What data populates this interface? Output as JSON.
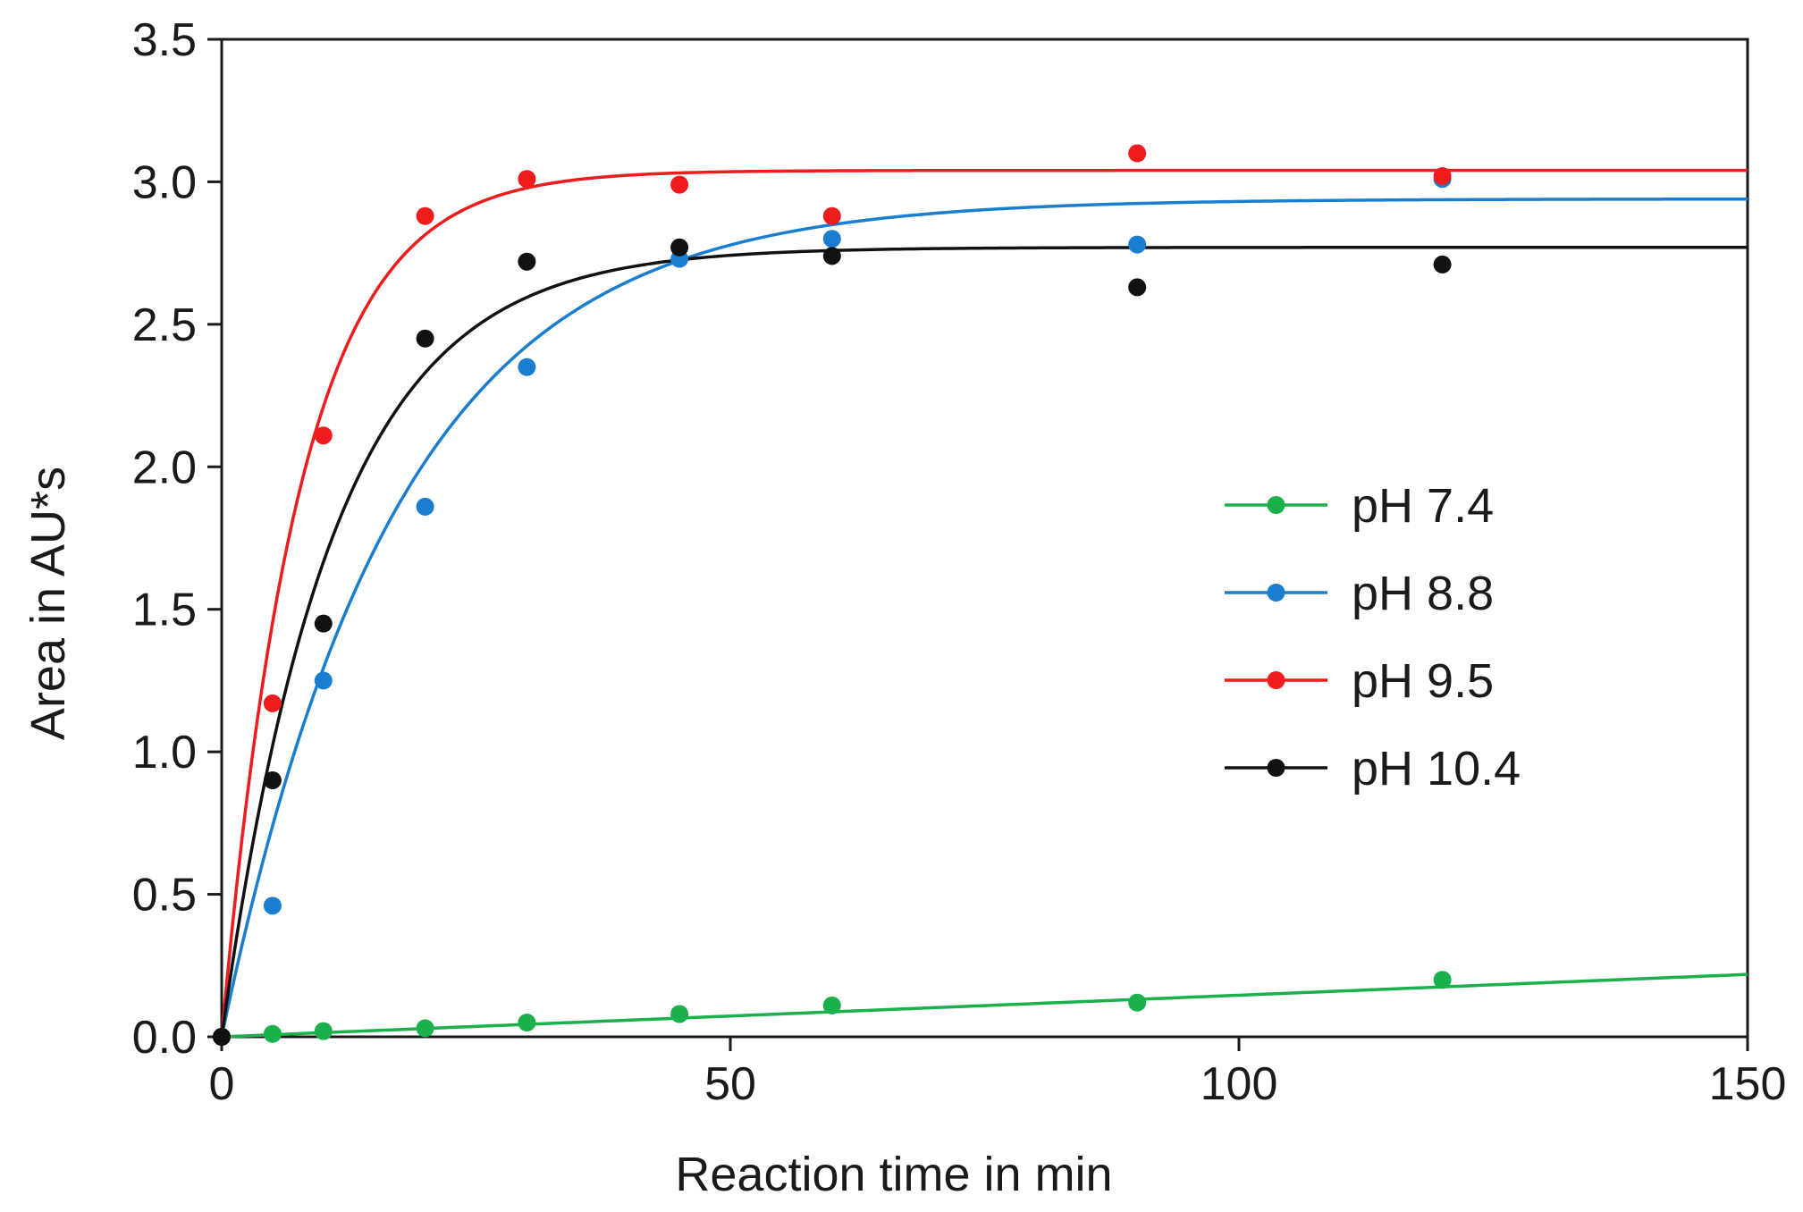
{
  "chart_data": {
    "type": "scatter",
    "title": "",
    "xlabel": "Reaction time in min",
    "ylabel": "Area in AU*s",
    "xlim": [
      0,
      150
    ],
    "ylim": [
      0,
      3.5
    ],
    "xticks": [
      0,
      50,
      100,
      150
    ],
    "xtick_labels": [
      "0",
      "50",
      "100",
      "150"
    ],
    "yticks": [
      0,
      0.5,
      1,
      1.5,
      2,
      2.5,
      3,
      3.5
    ],
    "ytick_labels": [
      "0.0",
      "0.5",
      "1.0",
      "1.5",
      "2.0",
      "2.5",
      "3.0",
      "3.5"
    ],
    "grid": false,
    "legend_position": "center-right",
    "series": [
      {
        "name": "pH 7.4",
        "color": "#1ab04c",
        "x": [
          0,
          5,
          10,
          20,
          30,
          45,
          60,
          90,
          120
        ],
        "y": [
          0.0,
          0.01,
          0.02,
          0.03,
          0.05,
          0.08,
          0.11,
          0.12,
          0.2
        ],
        "fit": {
          "model": "linear",
          "slope": 0.00146,
          "intercept": 0.0
        }
      },
      {
        "name": "pH 8.8",
        "color": "#1a7ed0",
        "x": [
          0,
          5,
          10,
          20,
          30,
          45,
          60,
          90,
          120
        ],
        "y": [
          0.0,
          0.46,
          1.25,
          1.86,
          2.35,
          2.73,
          2.8,
          2.78,
          3.01
        ],
        "fit": {
          "model": "exp_saturation",
          "amplitude": 2.94,
          "rate": 0.058
        }
      },
      {
        "name": "pH 9.5",
        "color": "#ee1c1c",
        "x": [
          0,
          5,
          10,
          20,
          30,
          45,
          60,
          90,
          120
        ],
        "y": [
          0.0,
          1.17,
          2.11,
          2.88,
          3.01,
          2.99,
          2.88,
          3.1,
          3.02
        ],
        "fit": {
          "model": "exp_saturation",
          "amplitude": 3.04,
          "rate": 0.13
        }
      },
      {
        "name": "pH 10.4",
        "color": "#111111",
        "x": [
          0,
          5,
          10,
          20,
          30,
          45,
          60,
          90,
          120
        ],
        "y": [
          0.0,
          0.9,
          1.45,
          2.45,
          2.72,
          2.77,
          2.74,
          2.63,
          2.71
        ],
        "fit": {
          "model": "exp_saturation",
          "amplitude": 2.77,
          "rate": 0.092
        }
      }
    ]
  }
}
